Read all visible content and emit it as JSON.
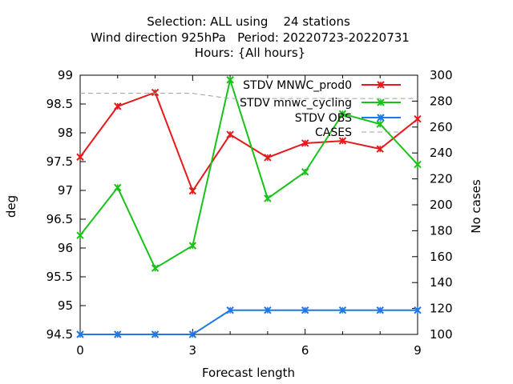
{
  "chart_data": {
    "type": "line",
    "title_lines": [
      "Selection: ALL using    24 stations",
      "Wind direction 925hPa   Period: 20220723-20220731",
      "Hours: {All hours}"
    ],
    "xlabel": "Forecast length",
    "ylabel": "deg",
    "y2label": "No cases",
    "xlim": [
      0,
      9
    ],
    "ylim": [
      94.5,
      99
    ],
    "y2lim": [
      100,
      300
    ],
    "xticks": [
      "0",
      "3",
      "6",
      "9"
    ],
    "yticks": [
      "94.5",
      "95",
      "95.5",
      "96",
      "96.5",
      "97",
      "97.5",
      "98",
      "98.5",
      "99"
    ],
    "y2ticks": [
      "100",
      "120",
      "140",
      "160",
      "180",
      "200",
      "220",
      "240",
      "260",
      "280",
      "300"
    ],
    "grid": false,
    "legend_position": "top-right",
    "x": [
      0,
      1,
      2,
      3,
      4,
      5,
      6,
      7,
      8,
      9
    ],
    "series": [
      {
        "name": "STDV MNWC_prod0",
        "color": "#e41a1c",
        "axis": "y1",
        "values": [
          97.58,
          98.46,
          98.7,
          96.99,
          97.97,
          97.57,
          97.82,
          97.86,
          97.72,
          98.24
        ]
      },
      {
        "name": "STDV mnwc_cycling",
        "color": "#19c219",
        "axis": "y1",
        "values": [
          96.22,
          97.05,
          95.65,
          96.04,
          98.92,
          96.86,
          97.32,
          98.33,
          98.15,
          97.45
        ]
      },
      {
        "name": "STDV OBS",
        "color": "#1f78e6",
        "axis": "y1",
        "values": [
          94.5,
          94.5,
          94.5,
          94.5,
          94.92,
          94.92,
          94.92,
          94.92,
          94.92,
          94.92
        ]
      },
      {
        "name": "CASES",
        "color": "#a0a0a0",
        "axis": "y2",
        "dashed": true,
        "values": [
          286,
          286,
          286,
          286,
          282,
          282,
          282,
          282,
          282,
          282
        ]
      }
    ]
  }
}
